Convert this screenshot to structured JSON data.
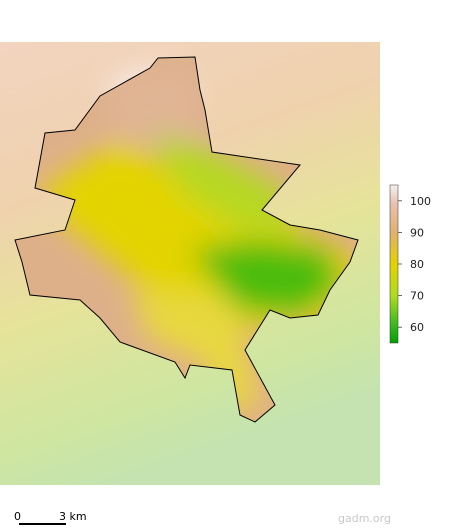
{
  "legend": {
    "range": [
      55,
      105
    ],
    "ticks": [
      100,
      90,
      80,
      70,
      60
    ]
  },
  "scale_bar": {
    "start": "0",
    "end": "3 km"
  },
  "credit": "gadm.org"
}
